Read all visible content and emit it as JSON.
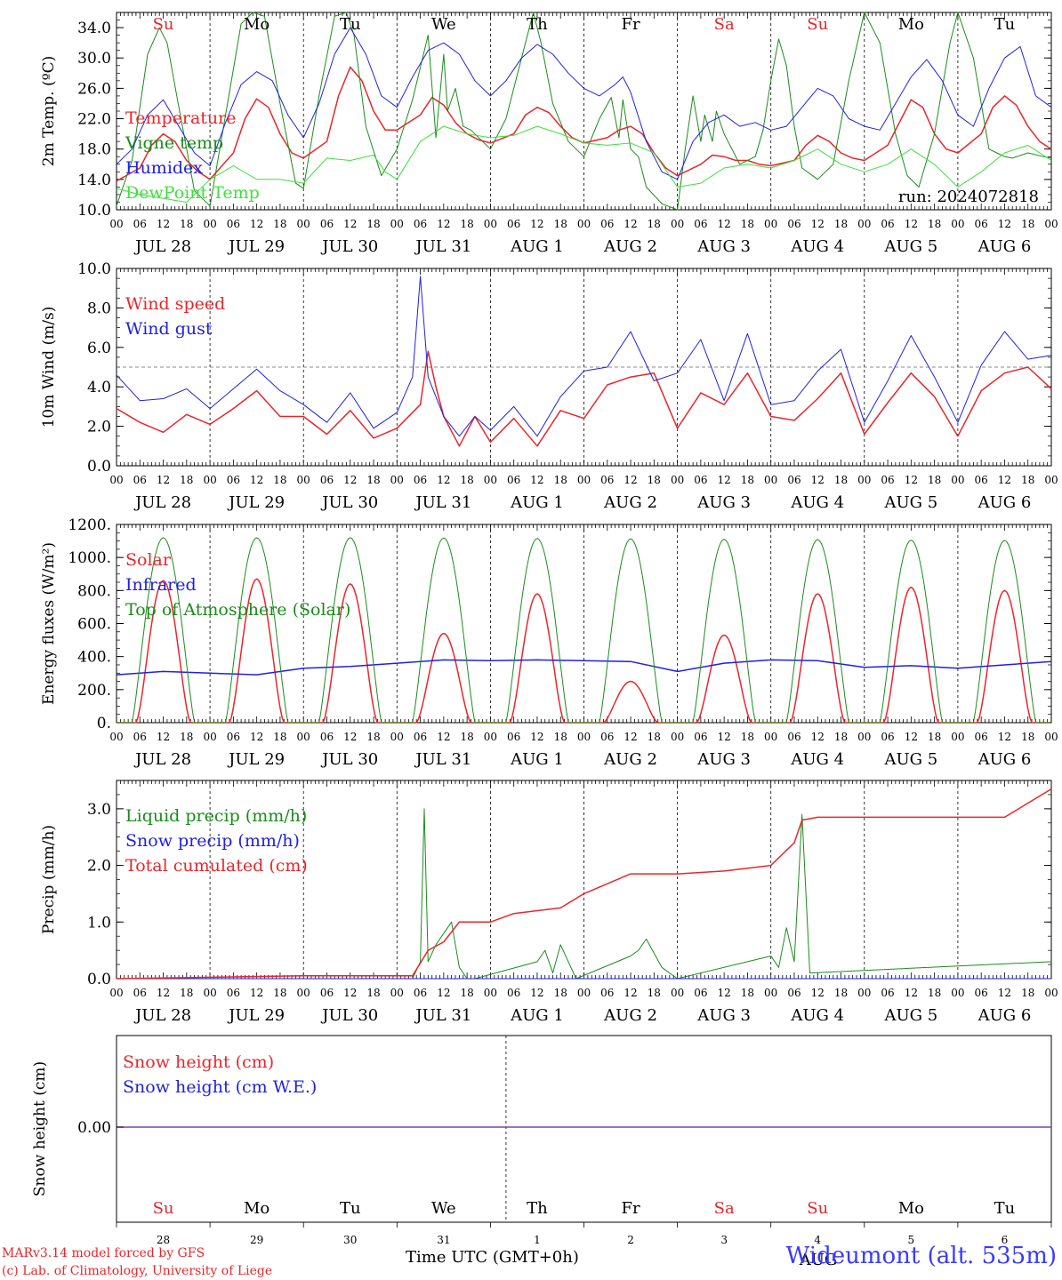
{
  "colors": {
    "red": "#e8262b",
    "green": "#1a8c1a",
    "blue": "#2020e0",
    "lightgreen": "#3de03d",
    "purple": "#8040a0"
  },
  "days": [
    {
      "abbr": "Su",
      "weekend": true,
      "date": "JUL 28",
      "daynum": "28"
    },
    {
      "abbr": "Mo",
      "weekend": false,
      "date": "JUL 29",
      "daynum": "29"
    },
    {
      "abbr": "Tu",
      "weekend": false,
      "date": "JUL 30",
      "daynum": "30"
    },
    {
      "abbr": "We",
      "weekend": false,
      "date": "JUL 31",
      "daynum": "31"
    },
    {
      "abbr": "Th",
      "weekend": false,
      "date": "AUG  1",
      "daynum": "1"
    },
    {
      "abbr": "Fr",
      "weekend": false,
      "date": "AUG  2",
      "daynum": "2"
    },
    {
      "abbr": "Sa",
      "weekend": true,
      "date": "AUG  3",
      "daynum": "3"
    },
    {
      "abbr": "Su",
      "weekend": true,
      "date": "AUG  4",
      "daynum": "4"
    },
    {
      "abbr": "Mo",
      "weekend": false,
      "date": "AUG  5",
      "daynum": "5"
    },
    {
      "abbr": "Tu",
      "weekend": false,
      "date": "AUG  6",
      "daynum": "6"
    }
  ],
  "hour_ticks": [
    "00",
    "06",
    "12",
    "18"
  ],
  "hour_tick_end": "00",
  "chart_data": [
    {
      "type": "line",
      "ylabel": "2m Temp. (ºC)",
      "ylim": [
        10,
        36
      ],
      "yticks": [
        "10.0",
        "14.0",
        "18.0",
        "22.0",
        "26.0",
        "30.0",
        "34.0"
      ],
      "run_label": "run: 2024072818",
      "show_day_abbr": true,
      "x_unit": "hours since JUL 28 00 UTC",
      "series": [
        {
          "name": "Temperature",
          "color": "red",
          "width": 1.5,
          "x": [
            0,
            6,
            9,
            12,
            15,
            18,
            21,
            24,
            30,
            33,
            36,
            39,
            42,
            45,
            48,
            54,
            57,
            60,
            63,
            66,
            69,
            72,
            78,
            81,
            84,
            87,
            90,
            93,
            96,
            102,
            105,
            108,
            111,
            114,
            117,
            120,
            126,
            129,
            132,
            135,
            138,
            141,
            144,
            150,
            153,
            156,
            159,
            162,
            165,
            168,
            174,
            177,
            180,
            183,
            186,
            189,
            192,
            198,
            201,
            204,
            207,
            210,
            213,
            216,
            222,
            225,
            228,
            231,
            234,
            237,
            240
          ],
          "y": [
            13.8,
            15.5,
            18.5,
            20.0,
            19.0,
            16.5,
            15.0,
            14.0,
            17.5,
            22.0,
            24.6,
            23.5,
            20.0,
            17.5,
            16.8,
            19.0,
            25.0,
            28.8,
            27.0,
            23.0,
            20.5,
            20.5,
            22.5,
            24.8,
            23.8,
            21.5,
            20.0,
            19.2,
            18.8,
            20.0,
            22.5,
            23.5,
            22.8,
            21.0,
            19.5,
            18.8,
            19.5,
            20.5,
            21.0,
            20.0,
            17.5,
            15.5,
            14.5,
            16.0,
            17.2,
            17.0,
            16.5,
            16.5,
            16.0,
            15.8,
            16.5,
            18.5,
            19.8,
            19.0,
            17.5,
            16.8,
            16.5,
            18.5,
            21.5,
            24.5,
            23.5,
            20.0,
            18.0,
            17.5,
            20.0,
            23.5,
            25.0,
            23.8,
            21.0,
            19.0,
            18.0
          ]
        },
        {
          "name": "Vigne temp",
          "color": "green",
          "width": 1,
          "x": [
            0,
            4,
            8,
            11,
            13,
            16,
            20,
            24,
            28,
            32,
            35,
            38,
            42,
            46,
            48,
            52,
            56,
            59,
            61,
            64,
            68,
            72,
            76,
            80,
            82,
            84,
            85,
            87,
            89,
            91,
            94,
            96,
            100,
            104,
            107,
            109,
            112,
            116,
            120,
            124,
            127,
            129,
            130,
            132,
            134,
            136,
            140,
            144,
            146,
            148,
            150,
            151,
            153,
            154,
            156,
            160,
            164,
            166,
            168,
            170,
            172,
            174,
            176,
            180,
            184,
            188,
            192,
            196,
            200,
            203,
            206,
            210,
            214,
            216,
            220,
            224,
            226,
            228,
            230,
            234,
            238,
            240
          ],
          "y": [
            10.5,
            16.5,
            30.5,
            34.0,
            32.0,
            23.5,
            12.5,
            10.5,
            22.5,
            34.5,
            36.0,
            35.5,
            24.0,
            13.5,
            12.8,
            25.0,
            35.5,
            36.0,
            33.0,
            21.0,
            14.5,
            18.0,
            24.5,
            33.0,
            19.5,
            30.5,
            23.0,
            26.0,
            21.0,
            20.5,
            19.0,
            18.0,
            22.0,
            30.0,
            36.0,
            32.0,
            24.0,
            19.0,
            17.0,
            22.0,
            24.8,
            19.5,
            24.5,
            18.0,
            17.0,
            13.0,
            10.8,
            10.0,
            18.0,
            25.0,
            19.0,
            22.5,
            19.0,
            23.0,
            20.0,
            16.0,
            17.0,
            20.5,
            27.0,
            32.5,
            29.0,
            21.0,
            15.5,
            14.0,
            16.0,
            27.0,
            36.0,
            32.0,
            20.0,
            14.5,
            13.0,
            20.0,
            32.0,
            36.0,
            30.0,
            18.0,
            17.5,
            17.0,
            16.8,
            17.5,
            17.0,
            16.8
          ]
        },
        {
          "name": "Humidex",
          "color": "blue",
          "width": 1,
          "x": [
            0,
            4,
            8,
            12,
            16,
            20,
            24,
            28,
            32,
            36,
            40,
            44,
            48,
            52,
            56,
            60,
            64,
            68,
            72,
            76,
            80,
            84,
            88,
            92,
            96,
            100,
            104,
            108,
            112,
            116,
            120,
            124,
            128,
            130,
            132,
            136,
            140,
            144,
            148,
            152,
            156,
            160,
            164,
            168,
            172,
            176,
            180,
            184,
            188,
            192,
            196,
            200,
            204,
            208,
            212,
            216,
            220,
            224,
            228,
            232,
            236,
            240
          ],
          "y": [
            16.0,
            18.0,
            22.5,
            24.5,
            21.0,
            17.5,
            15.8,
            21.5,
            26.5,
            28.2,
            27.0,
            22.5,
            19.5,
            24.0,
            30.5,
            34.0,
            30.5,
            25.0,
            23.5,
            27.5,
            31.0,
            32.0,
            30.5,
            27.0,
            25.0,
            27.0,
            30.0,
            31.8,
            30.5,
            28.0,
            26.0,
            25.0,
            26.5,
            27.5,
            25.5,
            19.0,
            15.0,
            14.0,
            19.0,
            21.5,
            22.5,
            21.0,
            21.5,
            20.5,
            21.0,
            23.5,
            26.0,
            25.0,
            22.0,
            21.0,
            20.5,
            24.0,
            27.5,
            29.8,
            27.0,
            22.5,
            21.0,
            26.0,
            30.0,
            31.5,
            25.0,
            23.5
          ]
        },
        {
          "name": "DewPoint Temp",
          "color": "lightgreen",
          "width": 1,
          "x": [
            0,
            6,
            12,
            18,
            24,
            30,
            36,
            42,
            48,
            54,
            60,
            66,
            69,
            72,
            78,
            84,
            90,
            96,
            102,
            108,
            114,
            120,
            126,
            132,
            138,
            144,
            150,
            156,
            162,
            168,
            174,
            180,
            186,
            192,
            198,
            204,
            210,
            216,
            222,
            228,
            234,
            240
          ],
          "y": [
            12.8,
            12.0,
            11.5,
            11.0,
            14.0,
            15.8,
            14.0,
            14.0,
            13.5,
            16.8,
            16.5,
            17.2,
            15.0,
            14.0,
            19.0,
            21.0,
            20.0,
            19.5,
            19.8,
            21.0,
            20.0,
            18.8,
            18.5,
            18.8,
            17.5,
            13.0,
            13.5,
            15.5,
            16.0,
            15.5,
            16.5,
            18.0,
            16.0,
            15.0,
            16.0,
            18.0,
            16.0,
            13.0,
            15.0,
            17.5,
            18.5,
            16.5
          ]
        }
      ]
    },
    {
      "type": "line",
      "ylabel": "10m Wind (m/s)",
      "ylim": [
        0,
        10
      ],
      "yticks": [
        "0.0",
        "2.0",
        "4.0",
        "6.0",
        "8.0",
        "10.0"
      ],
      "reference_line": 5,
      "x_unit": "hours since JUL 28 00 UTC",
      "series": [
        {
          "name": "Wind speed",
          "color": "red",
          "width": 1.5,
          "x": [
            0,
            6,
            12,
            18,
            24,
            30,
            36,
            42,
            48,
            54,
            60,
            66,
            72,
            78,
            80,
            82,
            84,
            88,
            92,
            96,
            102,
            108,
            114,
            120,
            126,
            132,
            138,
            144,
            150,
            156,
            162,
            168,
            174,
            180,
            186,
            192,
            198,
            204,
            210,
            216,
            222,
            228,
            234,
            240
          ],
          "y": [
            2.9,
            2.2,
            1.7,
            2.6,
            2.1,
            2.9,
            3.8,
            2.5,
            2.5,
            1.6,
            2.8,
            1.4,
            1.9,
            3.1,
            5.8,
            4.0,
            2.5,
            1.0,
            2.5,
            1.2,
            2.4,
            1.0,
            2.8,
            2.4,
            4.1,
            4.5,
            4.7,
            1.9,
            3.7,
            3.1,
            4.7,
            2.5,
            2.3,
            3.4,
            4.7,
            1.6,
            3.2,
            4.7,
            3.5,
            1.5,
            3.8,
            4.7,
            5.0,
            3.9
          ]
        },
        {
          "name": "Wind gust",
          "color": "blue",
          "width": 1,
          "x": [
            0,
            6,
            12,
            18,
            24,
            30,
            36,
            42,
            48,
            54,
            60,
            66,
            72,
            76,
            78,
            80,
            82,
            84,
            88,
            92,
            96,
            102,
            108,
            114,
            120,
            126,
            132,
            138,
            144,
            150,
            156,
            162,
            168,
            174,
            180,
            186,
            192,
            198,
            204,
            210,
            216,
            222,
            228,
            234,
            240
          ],
          "y": [
            4.6,
            3.3,
            3.4,
            3.9,
            2.9,
            3.9,
            4.9,
            3.8,
            3.1,
            2.2,
            3.7,
            1.9,
            2.7,
            4.5,
            9.6,
            4.5,
            3.5,
            2.5,
            1.5,
            2.5,
            1.8,
            3.0,
            1.5,
            3.5,
            4.8,
            5.0,
            6.8,
            4.3,
            4.7,
            6.4,
            3.3,
            6.7,
            3.1,
            3.3,
            4.8,
            5.9,
            2.2,
            4.3,
            6.6,
            4.5,
            2.2,
            5.1,
            6.8,
            5.4,
            5.6
          ]
        }
      ]
    },
    {
      "type": "line",
      "ylabel": "Energy fluxes (W/m²)",
      "ylim": [
        0,
        1200
      ],
      "yticks": [
        "0.",
        "200.",
        "400.",
        "600.",
        "800.",
        "1000.",
        "1200."
      ],
      "x_unit": "hours since JUL 28 00 UTC",
      "series": [
        {
          "name": "Solar",
          "color": "red",
          "width": 1.5,
          "daily_peaks": [
            860,
            870,
            840,
            540,
            780,
            250,
            530,
            780,
            820,
            800
          ]
        },
        {
          "name": "Infrared",
          "color": "blue",
          "width": 1.5,
          "x": [
            0,
            12,
            24,
            36,
            48,
            60,
            72,
            84,
            96,
            108,
            120,
            132,
            144,
            156,
            168,
            180,
            192,
            204,
            216,
            228,
            240
          ],
          "y": [
            290,
            310,
            300,
            290,
            330,
            340,
            360,
            380,
            375,
            380,
            375,
            370,
            310,
            360,
            380,
            375,
            335,
            345,
            330,
            350,
            370
          ]
        },
        {
          "name": "Top of Atmosphere (Solar)",
          "color": "green",
          "width": 1,
          "daily_peaks": [
            1120,
            1120,
            1120,
            1118,
            1115,
            1113,
            1110,
            1108,
            1105,
            1103
          ]
        }
      ]
    },
    {
      "type": "line",
      "ylabel": "Precip (mm/h)",
      "ylim": [
        0,
        3.5
      ],
      "yticks": [
        "0.0",
        "1.0",
        "2.0",
        "3.0"
      ],
      "x_unit": "hours since JUL 28 00 UTC",
      "series": [
        {
          "name": "Liquid precip (mm/h)",
          "color": "green",
          "width": 1,
          "x": [
            0,
            76,
            78,
            79,
            80,
            82,
            86,
            88,
            90,
            92,
            108,
            110,
            112,
            114,
            118,
            132,
            134,
            136,
            140,
            144,
            168,
            170,
            172,
            174,
            176,
            178,
            240
          ],
          "y": [
            0,
            0,
            0.3,
            3.0,
            0.3,
            0.6,
            1.0,
            0.2,
            0,
            0,
            0.3,
            0.5,
            0.1,
            0.6,
            0,
            0.4,
            0.5,
            0.7,
            0.2,
            0,
            0.4,
            0.2,
            0.9,
            0.3,
            2.9,
            0.1,
            0.3
          ]
        },
        {
          "name": "Snow precip (mm/h)",
          "color": "blue",
          "width": 1,
          "x": [
            0,
            240
          ],
          "y": [
            0,
            0
          ]
        },
        {
          "name": "Total cumulated (cm)",
          "color": "red",
          "width": 1.5,
          "x": [
            0,
            48,
            76,
            80,
            84,
            88,
            96,
            102,
            108,
            114,
            120,
            132,
            138,
            144,
            156,
            168,
            174,
            176,
            180,
            228,
            234,
            240
          ],
          "y": [
            0,
            0.05,
            0.05,
            0.5,
            0.65,
            1.0,
            1.0,
            1.15,
            1.2,
            1.25,
            1.5,
            1.85,
            1.85,
            1.85,
            1.9,
            2.0,
            2.4,
            2.8,
            2.85,
            2.85,
            3.1,
            3.35
          ]
        }
      ]
    },
    {
      "type": "line",
      "ylabel": "Snow height (cm)",
      "yticks": [
        "0.00"
      ],
      "show_day_abbr": true,
      "x_unit": "hours since JUL 28 00 UTC",
      "series": [
        {
          "name": "Snow height (cm)",
          "color": "red"
        },
        {
          "name": "Snow height (cm W.E.)",
          "color": "blue"
        }
      ],
      "line_value": 0,
      "xlabel": "Time UTC (GMT+0h)",
      "month_label": "AUG"
    }
  ],
  "footer": {
    "credit_line1": "MARv3.14 model forced by GFS",
    "credit_line2": "(c) Lab. of Climatology, University of Liege",
    "xaxis_title": "Time UTC (GMT+0h)",
    "station": "Wideumont (alt. 535m)"
  }
}
